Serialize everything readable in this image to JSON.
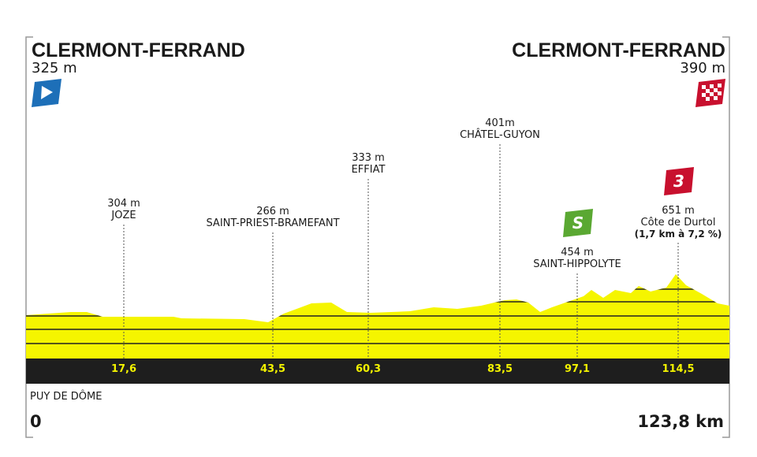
{
  "start": {
    "city": "CLERMONT-FERRAND",
    "altitude": "325 m"
  },
  "finish": {
    "city": "CLERMONT-FERRAND",
    "altitude": "390 m"
  },
  "points": [
    {
      "altitude": "304 m",
      "name": "JOZE",
      "km": "17,6"
    },
    {
      "altitude": "266 m",
      "name": "SAINT-PRIEST-BRAMEFANT",
      "km": "43,5"
    },
    {
      "altitude": "333 m",
      "name": "EFFIAT",
      "km": "60,3"
    },
    {
      "altitude": "401m",
      "name": "CHÂTEL-GUYON",
      "km": "83,5"
    },
    {
      "altitude": "454 m",
      "name": "SAINT-HIPPOLYTE",
      "km": "97,1",
      "icon": "S"
    },
    {
      "altitude": "651 m",
      "name": "Côte de Durtol",
      "note": "(1,7 km à 7,2 %)",
      "km": "114,5",
      "icon": "3"
    }
  ],
  "region": "PUY DE DÔME",
  "distance_start": "0",
  "distance_end": "123,8 km"
}
